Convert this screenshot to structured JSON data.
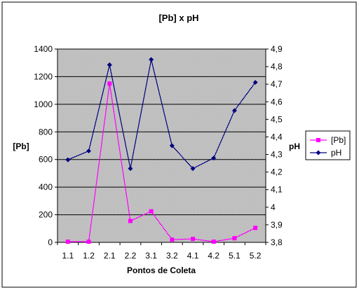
{
  "chart_data": {
    "type": "line",
    "title": "[Pb] x pH",
    "xlabel": "Pontos de Coleta",
    "ylabel": "[Pb]",
    "y2label": "pH",
    "categories": [
      "1.1",
      "1.2",
      "2.1",
      "2.2",
      "3.1",
      "3.2",
      "4.1",
      "4.2",
      "5.1",
      "5.2"
    ],
    "y_ticks": [
      "0",
      "200",
      "400",
      "600",
      "800",
      "1000",
      "1200",
      "1400"
    ],
    "y2_ticks": [
      "3,8",
      "3,9",
      "4",
      "4,1",
      "4,2",
      "4,3",
      "4,4",
      "4,5",
      "4,6",
      "4,7",
      "4,8",
      "4,9"
    ],
    "ylim": [
      0,
      1400
    ],
    "y2lim": [
      3.8,
      4.9
    ],
    "grid": true,
    "legend_position": "right",
    "series": [
      {
        "name": "[Pb]",
        "axis": "left",
        "color": "#ff00ff",
        "marker": "square",
        "values": [
          5,
          5,
          1150,
          155,
          225,
          20,
          25,
          5,
          30,
          105
        ]
      },
      {
        "name": "pH",
        "axis": "right",
        "color": "#000080",
        "marker": "diamond",
        "values": [
          4.27,
          4.32,
          4.81,
          4.22,
          4.84,
          4.35,
          4.22,
          4.28,
          4.55,
          4.71
        ]
      }
    ],
    "plot_background": "#c0c0c0"
  }
}
